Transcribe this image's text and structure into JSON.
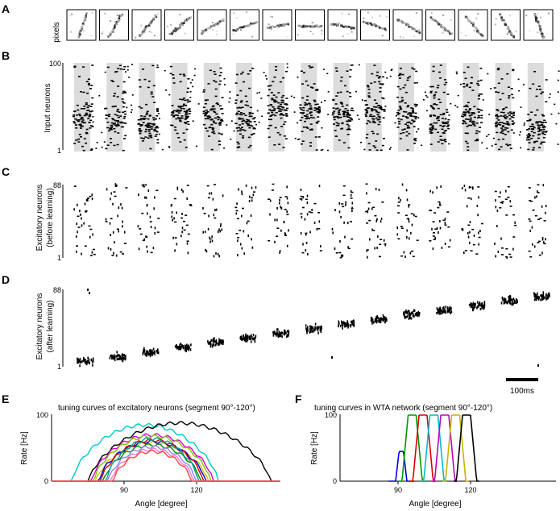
{
  "panels": {
    "A": {
      "label": "A",
      "ylabel": "pixels",
      "n_images": 15
    },
    "B": {
      "label": "B",
      "ylabel": "Input neurons",
      "ytick_top": "100",
      "ytick_bottom": "1"
    },
    "C": {
      "label": "C",
      "ylabel_line1": "Excitatory neurons",
      "ylabel_line2": "(before learning)",
      "ytick_top": "88",
      "ytick_bottom": "1"
    },
    "D": {
      "label": "D",
      "ylabel_line1": "Excitatory neurons",
      "ylabel_line2": "(after learning)",
      "ytick_top": "88",
      "ytick_bottom": "1",
      "scalebar_label": "100ms"
    },
    "E": {
      "label": "E",
      "title": "tuning curves of excitatory neurons (segment 90°-120°)",
      "ylabel": "Rate [Hz]",
      "xlabel": "Angle [degree]",
      "ytick_top": "100",
      "ytick_bottom": "0",
      "xtick_1": "90",
      "xtick_2": "120"
    },
    "F": {
      "label": "F",
      "title": "tuning curves in WTA network (segment 90°-120°)",
      "ylabel": "Rate [Hz]",
      "xlabel": "Angle [degree]",
      "ytick_top": "100",
      "ytick_bottom": "0",
      "xtick_1": "90",
      "xtick_2": "120"
    }
  },
  "chart_data": [
    {
      "type": "line",
      "panel": "E",
      "title": "tuning curves of excitatory neurons (segment 90°-120°)",
      "xlabel": "Angle [degree]",
      "ylabel": "Rate [Hz]",
      "ylim": [
        0,
        100
      ],
      "xticks": [
        90,
        120
      ],
      "curve_colors": [
        "#00c8c8",
        "#000000",
        "#d000d0",
        "#7cc800",
        "#e0c000",
        "#0000e0",
        "#c80000",
        "#008800",
        "#00a0a0",
        "#8888ff",
        "#ff77cc",
        "#ff4444"
      ],
      "approx_peaks_hz": [
        85,
        88,
        70,
        68,
        58,
        60,
        62,
        55,
        64,
        52,
        48,
        45
      ]
    },
    {
      "type": "line",
      "panel": "F",
      "title": "tuning curves in WTA network (segment 90°-120°)",
      "xlabel": "Angle [degree]",
      "ylabel": "Rate [Hz]",
      "ylim": [
        0,
        100
      ],
      "xticks": [
        90,
        120
      ],
      "curve_colors": [
        "#0000e0",
        "#009900",
        "#e00000",
        "#00bbcc",
        "#c000c0",
        "#c8b400",
        "#000000"
      ],
      "approx_peaks_hz": [
        45,
        100,
        100,
        100,
        100,
        100,
        100
      ]
    }
  ]
}
